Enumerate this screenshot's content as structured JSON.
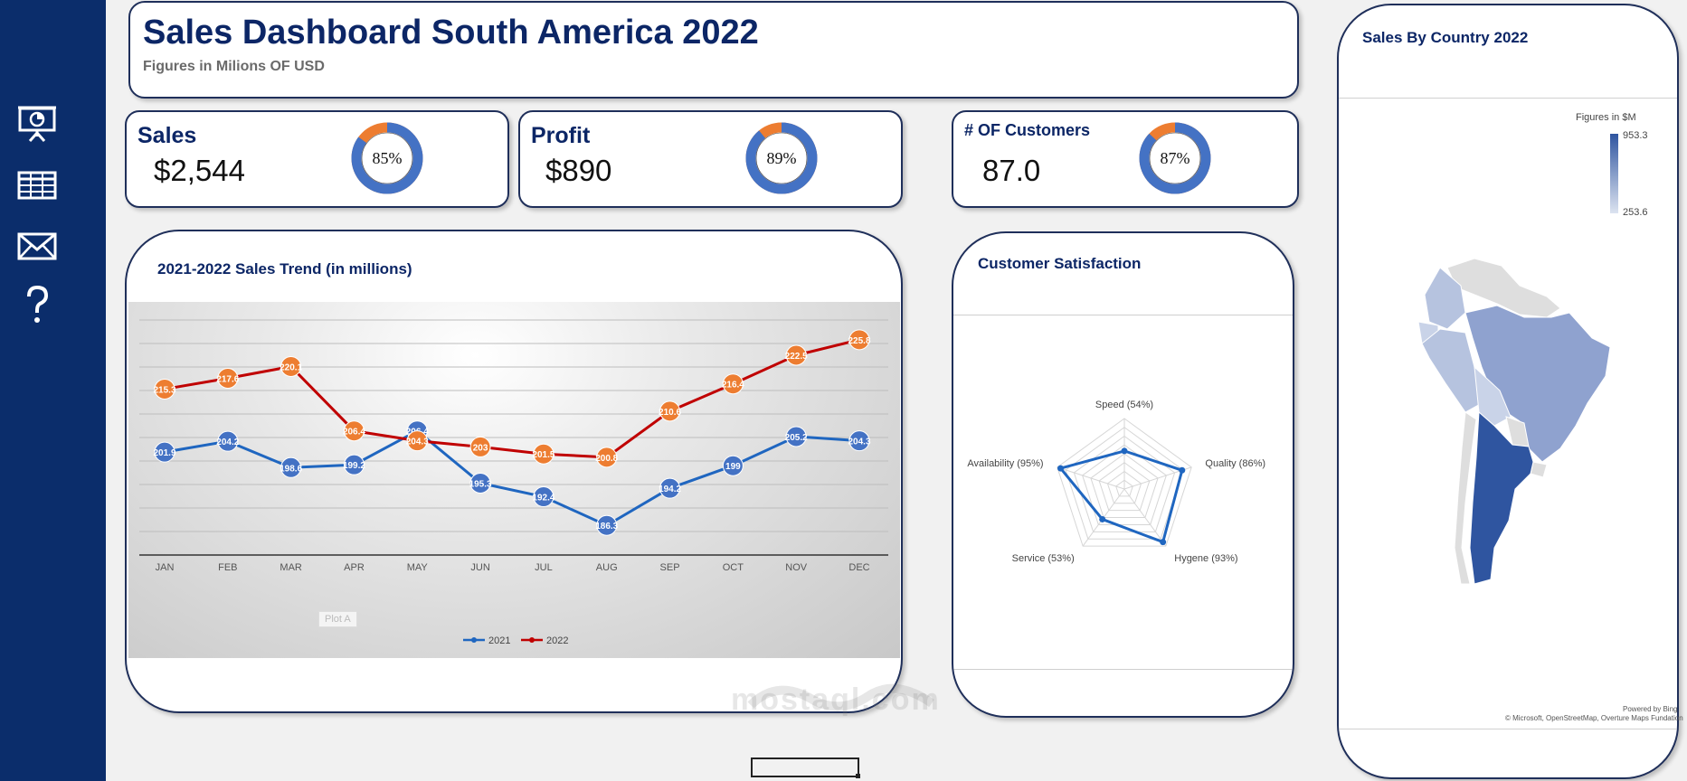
{
  "header": {
    "title": "Sales Dashboard South America 2022",
    "subtitle": "Figures in Milions OF USD"
  },
  "sidebar": {
    "items": [
      {
        "icon": "presentation-icon"
      },
      {
        "icon": "table-icon"
      },
      {
        "icon": "mail-icon"
      },
      {
        "icon": "help-icon"
      }
    ]
  },
  "kpis": [
    {
      "label": "Sales",
      "value": "$2,544",
      "percent_label": "85%",
      "percent": 85
    },
    {
      "label": "Profit",
      "value": "$890",
      "percent_label": "89%",
      "percent": 89
    },
    {
      "label": "# OF Customers",
      "value": "87.0",
      "percent_label": "87%",
      "percent": 87
    }
  ],
  "colors": {
    "sidebar": "#0b2d6b",
    "title": "#0c2666",
    "donut_main": "#4472c4",
    "donut_rest": "#ed7d31",
    "series_2021": "#1f66c0",
    "series_2022": "#c00000",
    "marker_2021": "#4472c4",
    "marker_2022": "#ed7d31"
  },
  "trend": {
    "title": "2021-2022 Sales Trend (in millions)",
    "tooltip": "Plot A",
    "chart_data": {
      "type": "line",
      "categories": [
        "JAN",
        "FEB",
        "MAR",
        "APR",
        "MAY",
        "JUN",
        "JUL",
        "AUG",
        "SEP",
        "OCT",
        "NOV",
        "DEC"
      ],
      "series": [
        {
          "name": "2021",
          "values": [
            201.9,
            204.2,
            198.6,
            199.2,
            206.4,
            195.3,
            192.4,
            186.3,
            194.2,
            199,
            205.2,
            204.3
          ],
          "labels": [
            "201.9",
            "204.2",
            "198.6",
            "199.2",
            "206.4",
            "195.3",
            "192.4",
            "186.3",
            "194.2",
            "199",
            "205.2",
            "204.3"
          ]
        },
        {
          "name": "2022",
          "values": [
            215.3,
            217.6,
            220.1,
            206.4,
            204.3,
            203,
            201.5,
            200.8,
            210.6,
            216.4,
            222.5,
            225.8
          ],
          "labels": [
            "215.3",
            "217.6",
            "220.1",
            "206.4",
            "204.3",
            "203",
            "201.5",
            "200.8",
            "210.6",
            "216.4",
            "222.5",
            "225.8"
          ]
        }
      ],
      "ylim": [
        180,
        230
      ],
      "grid": true,
      "legend": "bottom"
    }
  },
  "satisfaction": {
    "title": "Customer Satisfaction",
    "chart_data": {
      "type": "radar",
      "categories": [
        "Speed (54%)",
        "Quality (86%)",
        "Hygene (93%)",
        "Service (53%)",
        "Availability (95%)"
      ],
      "values": [
        54,
        86,
        93,
        53,
        95
      ],
      "range": [
        0,
        100
      ]
    }
  },
  "map": {
    "title": "Sales By Country 2022",
    "legend_title": "Figures in $M",
    "legend_max": "953.3",
    "legend_min": "253.6",
    "attribution_powered": "Powered by Bing",
    "attribution": "© Microsoft, OpenStreetMap, Overture Maps Fundation"
  },
  "watermark": "mostaql.com"
}
